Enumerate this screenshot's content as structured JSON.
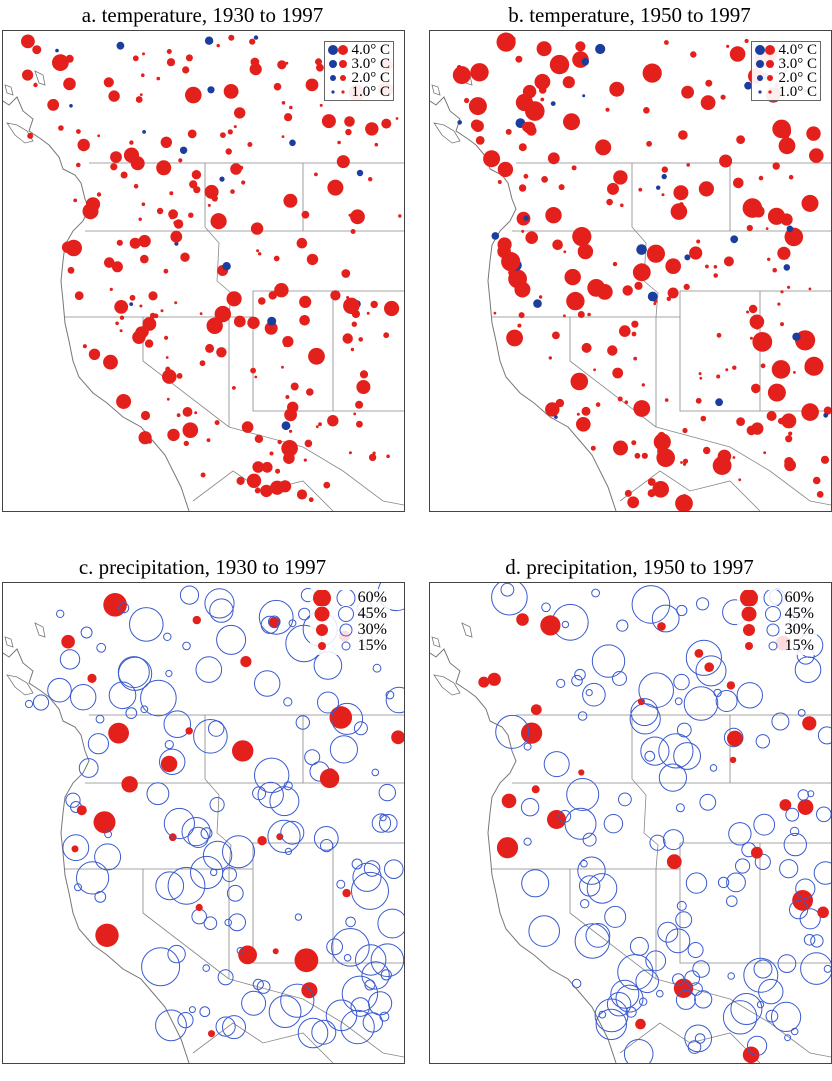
{
  "panels": [
    {
      "id": "a",
      "title": "a. temperature,  1930 to  1997",
      "variable": "temperature",
      "symbols": "filled"
    },
    {
      "id": "b",
      "title": "b. temperature,  1950 to  1997",
      "variable": "temperature",
      "symbols": "filled"
    },
    {
      "id": "c",
      "title": "c. precipitation,  1930 to  1997",
      "variable": "precipitation",
      "symbols": "mixed"
    },
    {
      "id": "d",
      "title": "d. precipitation,  1950 to  1997",
      "variable": "precipitation",
      "symbols": "mixed"
    }
  ],
  "legends": {
    "temperature": [
      "4.0° C",
      "3.0° C",
      "2.0° C",
      "1.0° C"
    ],
    "precipitation": [
      "60%",
      "45%",
      "30%",
      "15%"
    ]
  },
  "colors": {
    "increase": "#e3201b",
    "decrease_temperature": "#1a3d9e",
    "decrease_precipitation": "#3a5bd0",
    "borders": "#888888",
    "coast": "#777777"
  }
}
